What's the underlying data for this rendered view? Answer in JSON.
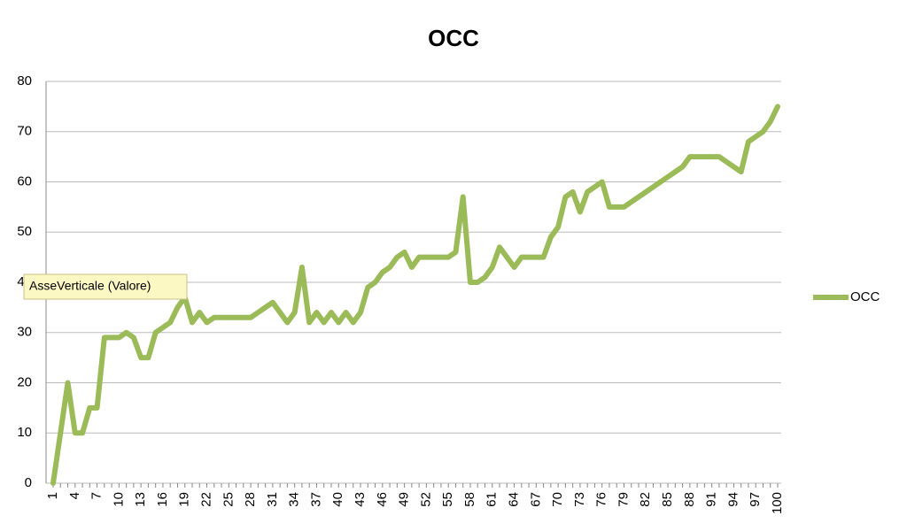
{
  "chart_data": {
    "type": "line",
    "title": "OCC",
    "categories": [
      "1",
      null,
      null,
      "4",
      null,
      null,
      "7",
      null,
      null,
      "10",
      null,
      null,
      "13",
      null,
      null,
      "16",
      null,
      null,
      "19",
      null,
      null,
      "22",
      null,
      null,
      "25",
      null,
      null,
      "28",
      null,
      null,
      "31",
      null,
      null,
      "34",
      null,
      null,
      "37",
      null,
      null,
      "40",
      null,
      null,
      "43",
      null,
      null,
      "46",
      null,
      null,
      "49",
      null,
      null,
      "52",
      null,
      null,
      "55",
      null,
      null,
      "58",
      null,
      null,
      "61",
      null,
      null,
      "64",
      null,
      null,
      "67",
      null,
      null,
      "70",
      null,
      null,
      "73",
      null,
      null,
      "76",
      null,
      null,
      "79",
      null,
      null,
      "82",
      null,
      null,
      "85",
      null,
      null,
      "88",
      null,
      null,
      "91",
      null,
      null,
      "94",
      null,
      null,
      "97",
      null,
      null,
      "100"
    ],
    "series": [
      {
        "name": "OCC",
        "color": "#9bbb59",
        "values": [
          0,
          10,
          20,
          10,
          10,
          15,
          15,
          29,
          29,
          29,
          30,
          29,
          25,
          25,
          30,
          31,
          32,
          35,
          37,
          32,
          34,
          32,
          33,
          33,
          33,
          33,
          33,
          33,
          34,
          35,
          36,
          34,
          32,
          34,
          43,
          32,
          34,
          32,
          34,
          32,
          34,
          32,
          34,
          39,
          40,
          42,
          43,
          45,
          46,
          43,
          45,
          45,
          45,
          45,
          45,
          46,
          57,
          40,
          40,
          41,
          43,
          47,
          45,
          43,
          45,
          45,
          45,
          45,
          49,
          51,
          57,
          58,
          54,
          58,
          59,
          60,
          55,
          55,
          55,
          56,
          57,
          58,
          59,
          60,
          61,
          62,
          63,
          65,
          65,
          65,
          65,
          65,
          64,
          63,
          62,
          68,
          69,
          70,
          72,
          75
        ]
      }
    ],
    "ylim": [
      0,
      80
    ],
    "yticks": [
      0,
      10,
      20,
      30,
      40,
      50,
      60,
      70,
      80
    ],
    "grid": true,
    "legend": "right",
    "annotation": "AsseVerticale (Valore)"
  }
}
